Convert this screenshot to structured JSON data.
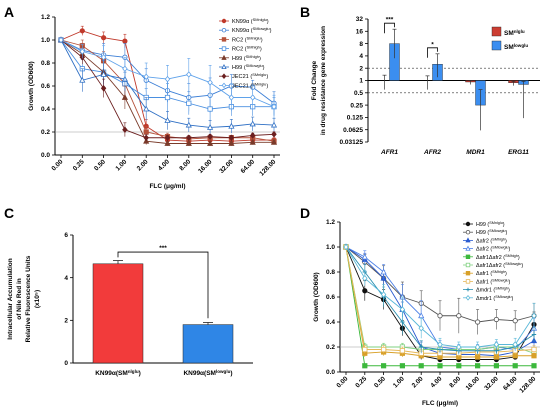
{
  "panels": {
    "A": {
      "label": "A",
      "chart_data": {
        "type": "line",
        "xlabel": "FLC (μg/ml)",
        "ylabel": "Growth (OD600)",
        "categories": [
          "0.00",
          "0.25",
          "0.50",
          "1.00",
          "2.00",
          "4.00",
          "8.00",
          "16.00",
          "32.00",
          "64.00",
          "128.00"
        ],
        "ylim": [
          0,
          1.2
        ],
        "yticks": [
          "0.0",
          "0.2",
          "0.4",
          "0.6",
          "0.8",
          "1.0",
          "1.2"
        ],
        "threshold": 0.2,
        "series": [
          {
            "name": "KN99α",
            "cond": "SMnlglu",
            "color": "#c0392b",
            "marker": "circle",
            "values": [
              1.0,
              1.08,
              1.02,
              0.99,
              0.25,
              0.13,
              0.12,
              0.13,
              0.12,
              0.13,
              0.13
            ],
            "err": [
              0.02,
              0.04,
              0.05,
              0.06,
              0.06,
              0.02,
              0.02,
              0.02,
              0.02,
              0.02,
              0.02
            ]
          },
          {
            "name": "KN99α",
            "cond": "SMlowglu",
            "color": "#3c7fd6",
            "marker": "circle-open",
            "values": [
              1.0,
              0.91,
              0.87,
              0.85,
              0.65,
              0.56,
              0.5,
              0.52,
              0.6,
              0.59,
              0.45
            ],
            "err": [
              0.02,
              0.06,
              0.1,
              0.12,
              0.1,
              0.1,
              0.12,
              0.15,
              0.1,
              0.06,
              0.1
            ]
          },
          {
            "name": "RC2",
            "cond": "SMnlglu",
            "color": "#b5523b",
            "marker": "square",
            "values": [
              1.0,
              0.95,
              0.82,
              0.62,
              0.2,
              0.16,
              0.14,
              0.15,
              0.15,
              0.15,
              0.12
            ],
            "err": [
              0.02,
              0.05,
              0.08,
              0.1,
              0.05,
              0.03,
              0.02,
              0.02,
              0.02,
              0.02,
              0.02
            ]
          },
          {
            "name": "RC2",
            "cond": "SMhigh",
            "color": "#4a8fe0",
            "marker": "square-open",
            "values": [
              1.0,
              0.75,
              0.72,
              0.62,
              0.5,
              0.5,
              0.45,
              0.4,
              0.42,
              0.42,
              0.42
            ],
            "err": [
              0.02,
              0.08,
              0.1,
              0.1,
              0.08,
              0.12,
              0.1,
              0.1,
              0.08,
              0.08,
              0.08
            ]
          },
          {
            "name": "H99",
            "cond": "SMhigh",
            "color": "#7a3b2a",
            "marker": "triangle",
            "values": [
              1.0,
              0.88,
              0.72,
              0.5,
              0.12,
              0.1,
              0.1,
              0.1,
              0.1,
              0.11,
              0.11
            ],
            "err": [
              0.02,
              0.06,
              0.08,
              0.1,
              0.03,
              0.02,
              0.02,
              0.02,
              0.02,
              0.02,
              0.02
            ]
          },
          {
            "name": "H99",
            "cond": "SMlowglu",
            "color": "#2e6fc4",
            "marker": "triangle-open",
            "values": [
              1.0,
              0.65,
              0.7,
              0.66,
              0.4,
              0.3,
              0.26,
              0.24,
              0.25,
              0.27,
              0.26
            ],
            "err": [
              0.02,
              0.1,
              0.12,
              0.1,
              0.1,
              0.08,
              0.06,
              0.06,
              0.06,
              0.06,
              0.06
            ]
          },
          {
            "name": "JEC21",
            "cond": "SMnlglu",
            "color": "#6b1f1f",
            "marker": "diamond",
            "values": [
              1.0,
              0.85,
              0.58,
              0.22,
              0.15,
              0.15,
              0.15,
              0.16,
              0.15,
              0.17,
              0.18
            ],
            "err": [
              0.02,
              0.06,
              0.08,
              0.06,
              0.03,
              0.02,
              0.02,
              0.02,
              0.02,
              0.02,
              0.02
            ]
          },
          {
            "name": "JEC21",
            "cond": "SMnlglu",
            "color": "#5fa2ea",
            "marker": "diamond-open",
            "values": [
              1.0,
              0.9,
              0.85,
              0.75,
              0.68,
              0.66,
              0.7,
              0.63,
              0.5,
              0.5,
              0.42
            ],
            "err": [
              0.02,
              0.06,
              0.1,
              0.1,
              0.12,
              0.12,
              0.14,
              0.15,
              0.12,
              0.1,
              0.1
            ]
          }
        ]
      }
    },
    "B": {
      "label": "B",
      "chart_data": {
        "type": "bar",
        "ylabel_line1": "Fold Change",
        "ylabel_line2": "in drug resistance gene expression",
        "categories": [
          "AFR1",
          "AFR2",
          "MDR1",
          "ERG11"
        ],
        "yscale": "log2",
        "ylim": [
          0.03125,
          32
        ],
        "yticks": [
          "0.03125",
          "0.0625",
          "0.125",
          "0.25",
          "0.5",
          "1",
          "2",
          "4",
          "8",
          "16",
          "32"
        ],
        "guide_lines": [
          2,
          0.5
        ],
        "series": [
          {
            "name": "SM",
            "sup": "nlglu",
            "color": "#cc3d32",
            "values": [
              1.0,
              1.0,
              0.92,
              0.88
            ],
            "err_low": [
              0.6,
              0.6,
              0.8,
              0.75
            ],
            "err_high": [
              1.35,
              1.3,
              1.0,
              0.95
            ]
          },
          {
            "name": "SM",
            "sup": "lowglu",
            "color": "#3b8ef0",
            "values": [
              8.0,
              2.5,
              0.25,
              0.8
            ],
            "err_low": [
              3.5,
              1.2,
              0.06,
              0.12
            ],
            "err_high": [
              18,
              4.5,
              0.6,
              0.95
            ]
          }
        ],
        "significance": [
          {
            "category": "AFR1",
            "text": "***"
          },
          {
            "category": "AFR2",
            "text": "*"
          }
        ]
      }
    },
    "C": {
      "label": "C",
      "chart_data": {
        "type": "bar",
        "ylabel_line1": "Intracellular Accumulation",
        "ylabel_line2": "of Nile Red in",
        "ylabel_line3": "Relative Fluorescence Units",
        "ylabel_line4": "(x10⁵)",
        "ylim": [
          0,
          6
        ],
        "yticks": [
          "0",
          "2",
          "4",
          "6"
        ],
        "bars": [
          {
            "label": "KN99α(SM",
            "sup": "nlglu",
            "suffix": ")",
            "value": 4.65,
            "err": 0.15,
            "color": "#f23b3b"
          },
          {
            "label": "KN99α(SM",
            "sup": "lowglu",
            "suffix": ")",
            "value": 1.8,
            "err": 0.1,
            "color": "#2f86e6"
          }
        ],
        "significance": "***"
      }
    },
    "D": {
      "label": "D",
      "chart_data": {
        "type": "line",
        "xlabel": "FLC (μg/ml)",
        "ylabel": "Growth (OD600)",
        "categories": [
          "0.00",
          "0.25",
          "0.50",
          "1.00",
          "2.00",
          "4.00",
          "8.00",
          "16.00",
          "32.00",
          "64.00",
          "128.00"
        ],
        "ylim": [
          0,
          1.2
        ],
        "yticks": [
          "0.0",
          "0.2",
          "0.4",
          "0.6",
          "0.8",
          "1.0",
          "1.2"
        ],
        "threshold": 0.2,
        "series": [
          {
            "name": "H99",
            "cond": "SMnlglu",
            "color": "#111111",
            "marker": "circle",
            "values": [
              1.0,
              0.65,
              0.58,
              0.35,
              0.13,
              0.1,
              0.1,
              0.1,
              0.1,
              0.12,
              0.38
            ],
            "err": [
              0.02,
              0.08,
              0.08,
              0.06,
              0.03,
              0.02,
              0.02,
              0.02,
              0.02,
              0.02,
              0.1
            ]
          },
          {
            "name": "H99",
            "cond": "SMlowglu",
            "color": "#555555",
            "marker": "circle-open",
            "values": [
              1.0,
              0.88,
              0.75,
              0.6,
              0.55,
              0.45,
              0.45,
              0.4,
              0.42,
              0.41,
              0.45
            ],
            "err": [
              0.02,
              0.06,
              0.1,
              0.12,
              0.1,
              0.12,
              0.14,
              0.1,
              0.08,
              0.08,
              0.1
            ]
          },
          {
            "name": "Δafr2",
            "cond": "SMhigh",
            "color": "#2a5bd0",
            "marker": "triangle",
            "values": [
              1.0,
              0.9,
              0.75,
              0.5,
              0.2,
              0.15,
              0.14,
              0.14,
              0.13,
              0.16,
              0.25
            ],
            "err": [
              0.02,
              0.05,
              0.06,
              0.06,
              0.04,
              0.02,
              0.02,
              0.02,
              0.02,
              0.02,
              0.05
            ]
          },
          {
            "name": "Δafr2",
            "cond": "SMlowglu",
            "color": "#4a7fe6",
            "marker": "triangle-open",
            "values": [
              1.0,
              0.92,
              0.8,
              0.6,
              0.45,
              0.2,
              0.18,
              0.18,
              0.2,
              0.18,
              0.35
            ],
            "err": [
              0.02,
              0.05,
              0.06,
              0.1,
              0.12,
              0.05,
              0.04,
              0.04,
              0.04,
              0.04,
              0.08
            ]
          },
          {
            "name": "Δafr1Δafr2",
            "cond": "SMhigh",
            "color": "#3cb83c",
            "marker": "square",
            "values": [
              1.0,
              0.05,
              0.05,
              0.05,
              0.05,
              0.05,
              0.05,
              0.05,
              0.05,
              0.05,
              0.05
            ],
            "err": [
              0.02,
              0.01,
              0.01,
              0.01,
              0.01,
              0.01,
              0.01,
              0.01,
              0.01,
              0.01,
              0.01
            ]
          },
          {
            "name": "Δafr1Δafr2",
            "cond": "SMlowglu",
            "color": "#7fd07f",
            "marker": "square-open",
            "values": [
              1.0,
              0.2,
              0.2,
              0.2,
              0.18,
              0.18,
              0.18,
              0.18,
              0.2,
              0.2,
              0.15
            ],
            "err": [
              0.02,
              0.03,
              0.03,
              0.03,
              0.03,
              0.03,
              0.03,
              0.03,
              0.03,
              0.03,
              0.03
            ]
          },
          {
            "name": "Δafr1",
            "cond": "SMhigh",
            "color": "#d8a028",
            "marker": "square",
            "values": [
              1.0,
              0.15,
              0.16,
              0.15,
              0.13,
              0.12,
              0.12,
              0.12,
              0.12,
              0.13,
              0.13
            ],
            "err": [
              0.02,
              0.03,
              0.03,
              0.03,
              0.02,
              0.02,
              0.02,
              0.02,
              0.02,
              0.02,
              0.02
            ]
          },
          {
            "name": "Δafr1",
            "cond": "SMlowglu",
            "color": "#e6b85a",
            "marker": "square-open",
            "values": [
              1.0,
              0.18,
              0.18,
              0.17,
              0.15,
              0.15,
              0.15,
              0.16,
              0.16,
              0.17,
              0.18
            ],
            "err": [
              0.02,
              0.03,
              0.03,
              0.03,
              0.03,
              0.03,
              0.03,
              0.03,
              0.03,
              0.03,
              0.03
            ]
          },
          {
            "name": "Δmdr1",
            "cond": "SMhigh",
            "color": "#2a8fb0",
            "marker": "plus",
            "values": [
              1.0,
              0.8,
              0.6,
              0.4,
              0.2,
              0.18,
              0.17,
              0.17,
              0.17,
              0.2,
              0.3
            ],
            "err": [
              0.02,
              0.06,
              0.08,
              0.1,
              0.05,
              0.03,
              0.03,
              0.03,
              0.03,
              0.03,
              0.06
            ]
          },
          {
            "name": "Δmdr1",
            "cond": "SMlowglu",
            "color": "#5ab8d8",
            "marker": "diamond-open",
            "values": [
              1.0,
              0.75,
              0.62,
              0.5,
              0.35,
              0.22,
              0.2,
              0.2,
              0.22,
              0.22,
              0.45
            ],
            "err": [
              0.02,
              0.06,
              0.08,
              0.1,
              0.08,
              0.05,
              0.04,
              0.04,
              0.04,
              0.05,
              0.1
            ]
          }
        ]
      }
    }
  }
}
